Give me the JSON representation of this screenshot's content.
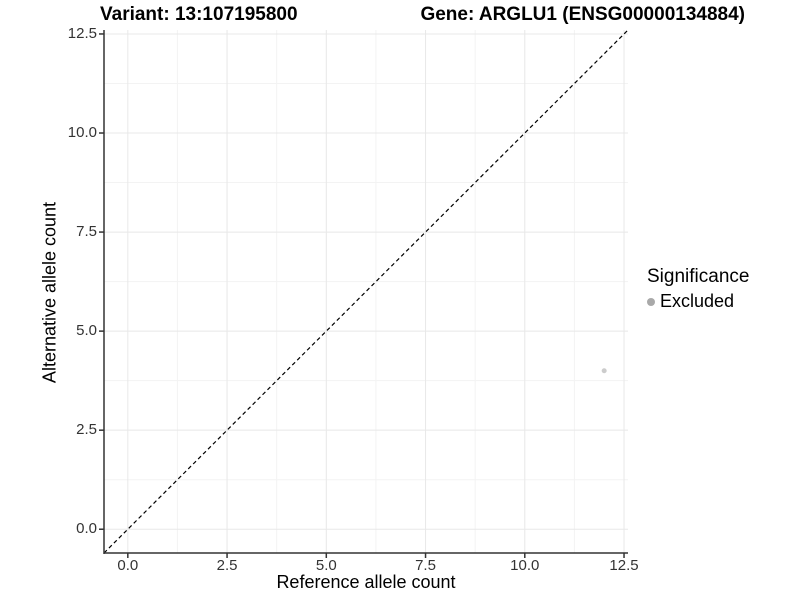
{
  "titles": {
    "variant": "Variant: 13:107195800",
    "gene": "Gene: ARGLU1 (ENSG00000134884)"
  },
  "axes": {
    "x_label": "Reference allele count",
    "y_label": "Alternative allele count"
  },
  "legend": {
    "title": "Significance",
    "entries": [
      {
        "label": "Excluded",
        "color": "#a9a9a9"
      }
    ]
  },
  "colors": {
    "background": "#ffffff",
    "grid_major": "#e8e8e8",
    "grid_minor": "#f3f3f3",
    "axis": "#333333",
    "reference_line": "#000000",
    "point": "#cccccc"
  },
  "chart_data": {
    "type": "scatter",
    "title_left": "Variant: 13:107195800",
    "title_right": "Gene: ARGLU1 (ENSG00000134884)",
    "xlabel": "Reference allele count",
    "ylabel": "Alternative allele count",
    "xlim": [
      -0.6,
      12.6
    ],
    "ylim": [
      -0.6,
      12.6
    ],
    "x_ticks": [
      0,
      2.5,
      5,
      7.5,
      10,
      12.5
    ],
    "y_ticks": [
      0,
      2.5,
      5,
      7.5,
      10,
      12.5
    ],
    "x_tick_labels": [
      "0.0",
      "2.5",
      "5.0",
      "7.5",
      "10.0",
      "12.5"
    ],
    "y_tick_labels": [
      "0.0",
      "2.5",
      "5.0",
      "7.5",
      "10.0",
      "12.5"
    ],
    "x_minor_ticks": [
      1.25,
      3.75,
      6.25,
      8.75,
      11.25
    ],
    "y_minor_ticks": [
      1.25,
      3.75,
      6.25,
      8.75,
      11.25
    ],
    "grid": true,
    "legend_position": "right",
    "legend_title": "Significance",
    "reference_line": {
      "slope": 1,
      "intercept": 0,
      "style": "dashed"
    },
    "series": [
      {
        "name": "Excluded",
        "color": "#cccccc",
        "points": [
          {
            "x": 12,
            "y": 4
          }
        ]
      }
    ]
  }
}
